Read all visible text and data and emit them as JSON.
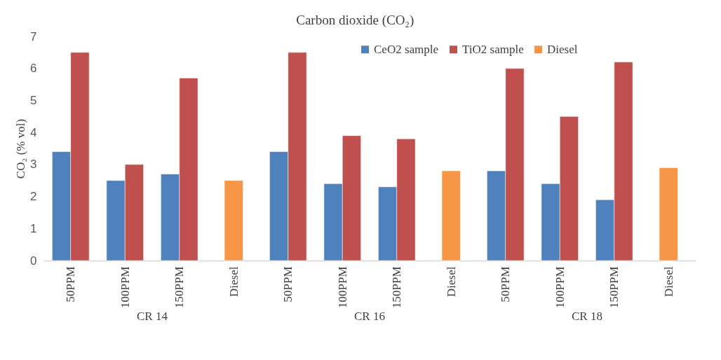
{
  "chart_data": {
    "type": "bar",
    "title": "Carbon dioxide (CO₂)",
    "ylabel": "CO₂ (% vol)",
    "categories": [
      "50PPM",
      "100PPM",
      "150PPM",
      "Diesel",
      "50PPM",
      "100PPM",
      "150PPM",
      "Diesel",
      "50PPM",
      "100PPM",
      "150PPM",
      "Diesel"
    ],
    "series": [
      {
        "name": "CeO2 sample",
        "color": "#4f81bd",
        "values": [
          3.4,
          2.5,
          2.7,
          null,
          3.4,
          2.4,
          2.3,
          null,
          2.8,
          2.4,
          1.9,
          null
        ]
      },
      {
        "name": "TiO2 sample",
        "color": "#c0504d",
        "values": [
          6.5,
          3.0,
          5.7,
          null,
          6.5,
          3.9,
          3.8,
          null,
          6.0,
          4.5,
          6.2,
          null
        ]
      },
      {
        "name": "Diesel",
        "color": "#f79646",
        "values": [
          null,
          null,
          null,
          2.5,
          null,
          null,
          null,
          2.8,
          null,
          null,
          null,
          2.9
        ]
      }
    ],
    "annotations": [
      "CR 14",
      "CR 16",
      "CR 18"
    ],
    "ylim": [
      0,
      7
    ],
    "yticks": [
      0,
      1,
      2,
      3,
      4,
      5,
      6,
      7
    ],
    "grid": false,
    "legend": "top right"
  }
}
